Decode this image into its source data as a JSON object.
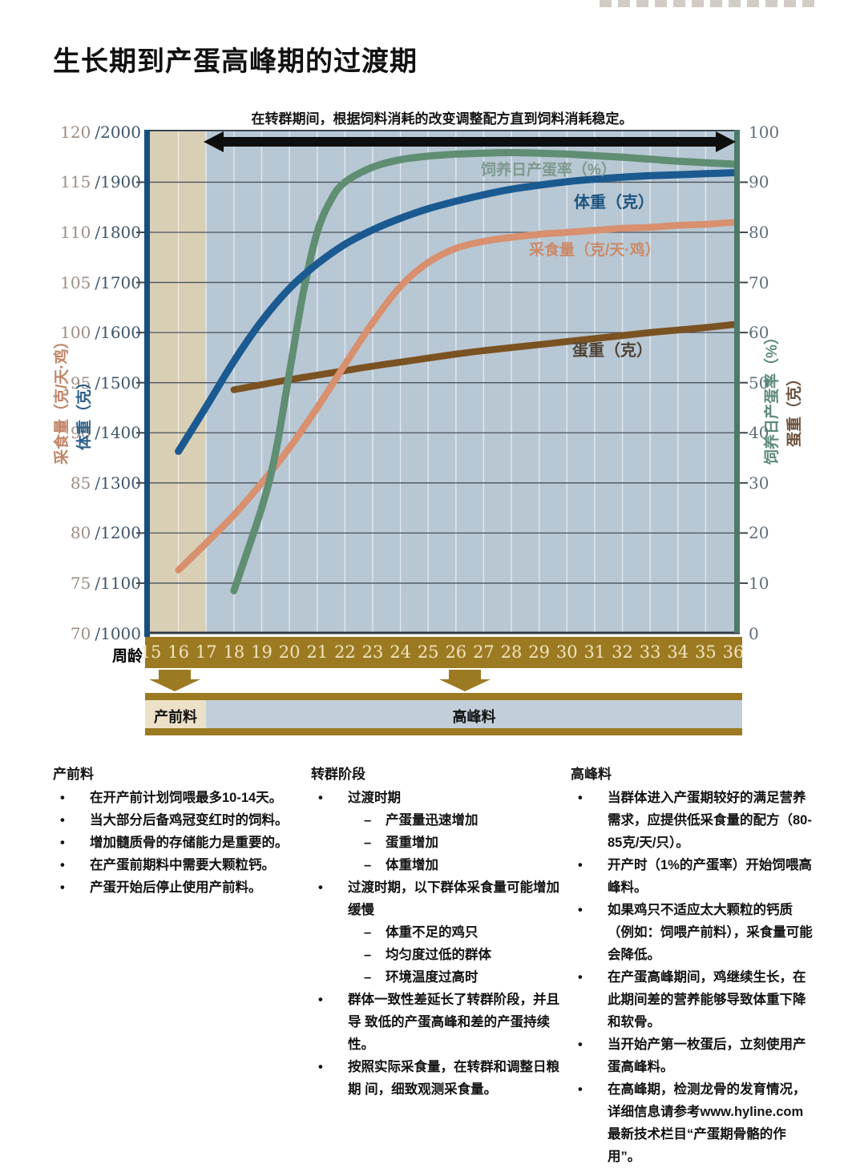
{
  "title": "生长期到产蛋高峰期的过渡期",
  "chart": {
    "note": "在转群期间，根据饲料消耗的改变调整配方直到饲料消耗稳定。",
    "x_axis_title": "周龄",
    "weeks": [
      "15",
      "16",
      "17",
      "18",
      "19",
      "20",
      "21",
      "22",
      "23",
      "24",
      "25",
      "26",
      "27",
      "28",
      "29",
      "30",
      "31",
      "32",
      "33",
      "34",
      "35",
      "36"
    ],
    "left_ticks": [
      {
        "feed": "120",
        "weight": "/2000"
      },
      {
        "feed": "115",
        "weight": "/1900"
      },
      {
        "feed": "110",
        "weight": "/1800"
      },
      {
        "feed": "105",
        "weight": "/1700"
      },
      {
        "feed": "100",
        "weight": "/1600"
      },
      {
        "feed": "95",
        "weight": "/1500"
      },
      {
        "feed": "90",
        "weight": "/1400"
      },
      {
        "feed": "85",
        "weight": "/1300"
      },
      {
        "feed": "80",
        "weight": "/1200"
      },
      {
        "feed": "75",
        "weight": "/1100"
      },
      {
        "feed": "70",
        "weight": "/1000"
      }
    ],
    "right_ticks": [
      "100",
      "90",
      "80",
      "70",
      "60",
      "50",
      "40",
      "30",
      "20",
      "10",
      "0"
    ],
    "axis_labels": {
      "feed": "采食量（克/天·鸡）",
      "body_weight": "体重（克）",
      "production": "饲养日产蛋率（%）",
      "egg_weight": "蛋重（克）"
    },
    "curve_labels": {
      "production": "饲养日产蛋率（%）",
      "body_weight": "体重（克）",
      "feed": "采食量（克/天·鸡）",
      "egg_weight": "蛋重（克）"
    },
    "feed_bar": {
      "prelay": "产前料",
      "peak": "高峰料"
    },
    "colors": {
      "production": "#5f8e73",
      "body_weight": "#1a5a91",
      "feed": "#d8906e",
      "egg_weight": "#7b5222",
      "gold": "#9c7a22",
      "plot_bg": "#b8c7d4",
      "prelay_band": "#d9cfb5",
      "black_arrow": "#0e0e0e"
    }
  },
  "chart_data": {
    "type": "line",
    "title": "生长期到产蛋高峰期的过渡期",
    "annotation": "在转群期间，根据饲料消耗的改变调整配方直到饲料消耗稳定。",
    "x_label": "周龄",
    "x_range": [
      15,
      36
    ],
    "axes": {
      "left_feed": {
        "label": "采食量（克/天·鸡）",
        "range": [
          70,
          120
        ]
      },
      "left_weight": {
        "label": "体重（克）",
        "range": [
          1000,
          2000
        ]
      },
      "right": {
        "label": "饲养日产蛋率（%）／蛋重（克）",
        "range": [
          0,
          100
        ]
      }
    },
    "grid": true,
    "legend_position": "inline-labels",
    "series": [
      {
        "name": "饲养日产蛋率（%）",
        "axis": "right",
        "color": "#5f8e73",
        "z": 3,
        "width": 9,
        "points": [
          [
            18,
            8.5
          ],
          [
            19,
            25
          ],
          [
            19.5,
            36
          ],
          [
            20,
            52
          ],
          [
            20.5,
            68
          ],
          [
            21,
            80
          ],
          [
            21.5,
            86.5
          ],
          [
            22,
            90
          ],
          [
            23,
            93
          ],
          [
            24,
            94.5
          ],
          [
            25,
            95.2
          ],
          [
            26,
            95.6
          ],
          [
            27,
            95.8
          ],
          [
            28,
            95.9
          ],
          [
            29,
            95.8
          ],
          [
            30,
            95.6
          ],
          [
            31,
            95.3
          ],
          [
            32,
            95
          ],
          [
            33,
            94.6
          ],
          [
            34,
            94.2
          ],
          [
            35,
            93.9
          ],
          [
            36,
            93.6
          ]
        ]
      },
      {
        "name": "体重（克）",
        "axis": "weight",
        "color": "#1a5a91",
        "z": 4,
        "width": 9,
        "points": [
          [
            16,
            1363
          ],
          [
            17,
            1452
          ],
          [
            18,
            1543
          ],
          [
            19,
            1623
          ],
          [
            20,
            1688
          ],
          [
            21,
            1737
          ],
          [
            22,
            1776
          ],
          [
            23,
            1805
          ],
          [
            24,
            1828
          ],
          [
            25,
            1847
          ],
          [
            26,
            1862
          ],
          [
            27,
            1875
          ],
          [
            28,
            1886
          ],
          [
            29,
            1894
          ],
          [
            30,
            1901
          ],
          [
            31,
            1906
          ],
          [
            32,
            1910
          ],
          [
            33,
            1913
          ],
          [
            34,
            1915
          ],
          [
            35,
            1917
          ],
          [
            36,
            1919
          ]
        ]
      },
      {
        "name": "采食量（克/天·鸡）",
        "axis": "feed",
        "color": "#d8906e",
        "z": 2,
        "width": 8.5,
        "points": [
          [
            16,
            76.3
          ],
          [
            17,
            79
          ],
          [
            18,
            81.8
          ],
          [
            19,
            85
          ],
          [
            20,
            88.5
          ],
          [
            21,
            92.5
          ],
          [
            22,
            96.8
          ],
          [
            23,
            101
          ],
          [
            24,
            104.6
          ],
          [
            25,
            107
          ],
          [
            26,
            108.4
          ],
          [
            27,
            109.1
          ],
          [
            28,
            109.5
          ],
          [
            29,
            109.8
          ],
          [
            30,
            110
          ],
          [
            31,
            110.2
          ],
          [
            32,
            110.4
          ],
          [
            33,
            110.5
          ],
          [
            34,
            110.7
          ],
          [
            35,
            110.8
          ],
          [
            36,
            111
          ]
        ]
      },
      {
        "name": "蛋重（克）",
        "axis": "right",
        "color": "#7b5222",
        "z": 1,
        "width": 8.5,
        "points": [
          [
            18,
            48.6
          ],
          [
            19,
            49.6
          ],
          [
            20,
            50.6
          ],
          [
            21,
            51.5
          ],
          [
            22,
            52.4
          ],
          [
            23,
            53.3
          ],
          [
            24,
            54.1
          ],
          [
            25,
            54.9
          ],
          [
            26,
            55.7
          ],
          [
            27,
            56.4
          ],
          [
            28,
            57
          ],
          [
            29,
            57.6
          ],
          [
            30,
            58.2
          ],
          [
            31,
            58.8
          ],
          [
            32,
            59.4
          ],
          [
            33,
            60
          ],
          [
            34,
            60.5
          ],
          [
            35,
            61
          ],
          [
            36,
            61.6
          ]
        ]
      }
    ],
    "feed_phases": [
      {
        "label": "产前料",
        "from_week": 15,
        "to_week": 17
      },
      {
        "label": "高峰料",
        "from_week": 17,
        "to_week": 36
      }
    ]
  },
  "notes": {
    "bullet_marker": "•",
    "sub_marker": "–",
    "columns": [
      {
        "title": "产前料",
        "items": [
          {
            "text": "在开产前计划饲喂最多10-14天。"
          },
          {
            "text": "当大部分后备鸡冠变红时的饲料。"
          },
          {
            "text": "增加髓质骨的存储能力是重要的。"
          },
          {
            "text": "在产蛋前期料中需要大颗粒钙。"
          },
          {
            "text": "产蛋开始后停止使用产前料。"
          }
        ]
      },
      {
        "title": "转群阶段",
        "items": [
          {
            "text": "过渡时期",
            "subs": [
              "产蛋量迅速增加",
              "蛋重增加",
              "体重增加"
            ]
          },
          {
            "text": "过渡时期，以下群体采食量可能增加 缓慢",
            "subs": [
              "体重不足的鸡只",
              "均匀度过低的群体",
              "环境温度过高时"
            ]
          },
          {
            "text": "群体一致性差延长了转群阶段，并且导 致低的产蛋高峰和差的产蛋持续性。"
          },
          {
            "text": "按照实际采食量，在转群和调整日粮期 间，细致观测采食量。"
          }
        ]
      },
      {
        "title": "高峰料",
        "items": [
          {
            "text": "当群体进入产蛋期较好的满足营养需求，应提供低采食量的配方（80-85克/天/只）。"
          },
          {
            "text": "开产时（1%的产蛋率）开始饲喂高峰料。"
          },
          {
            "text": "如果鸡只不适应太大颗粒的钙质（例如：饲喂产前料），采食量可能会降低。"
          },
          {
            "text": "在产蛋高峰期间，鸡继续生长，在 此期间差的营养能够导致体重下降和软骨。"
          },
          {
            "text": "当开始产第一枚蛋后，立刻使用产蛋高峰料。"
          },
          {
            "text": "在高峰期，检测龙骨的发育情况，详细信息请参考www.hyline.com最新技术栏目“产蛋期骨骼的作用”。"
          }
        ]
      }
    ]
  }
}
